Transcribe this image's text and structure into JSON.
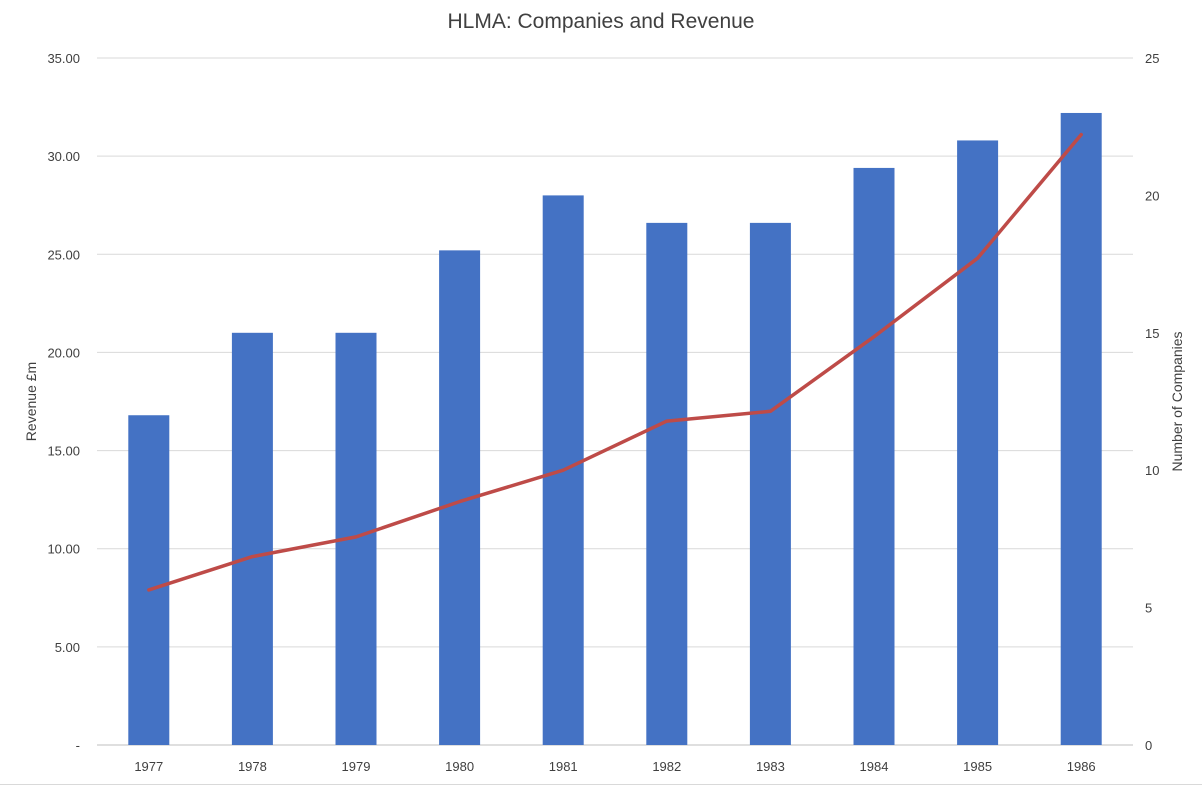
{
  "chart_data": {
    "type": "bar",
    "title": "HLMA: Companies and Revenue",
    "categories": [
      "1977",
      "1978",
      "1979",
      "1980",
      "1981",
      "1982",
      "1983",
      "1984",
      "1985",
      "1986"
    ],
    "series": [
      {
        "values": [
          12,
          15,
          15,
          18,
          20,
          19,
          19,
          21,
          22,
          23
        ],
        "axis": "right",
        "color": "#4472c4",
        "mark": "bar"
      },
      {
        "values": [
          7.9,
          9.6,
          10.6,
          12.4,
          14.0,
          16.5,
          17.0,
          20.8,
          24.8,
          31.1
        ],
        "axis": "left",
        "color": "#be4b48",
        "mark": "line"
      }
    ],
    "ylabel": "Revenue £m",
    "ylim": [
      0,
      35
    ],
    "y_ticks": [
      "-",
      "5.00",
      "10.00",
      "15.00",
      "20.00",
      "25.00",
      "30.00",
      "35.00"
    ],
    "y2label": "Number of Companies",
    "y2lim": [
      0,
      25
    ],
    "y2_ticks": [
      "0",
      "5",
      "10",
      "15",
      "20",
      "25"
    ],
    "grid": true,
    "legend": "none"
  }
}
